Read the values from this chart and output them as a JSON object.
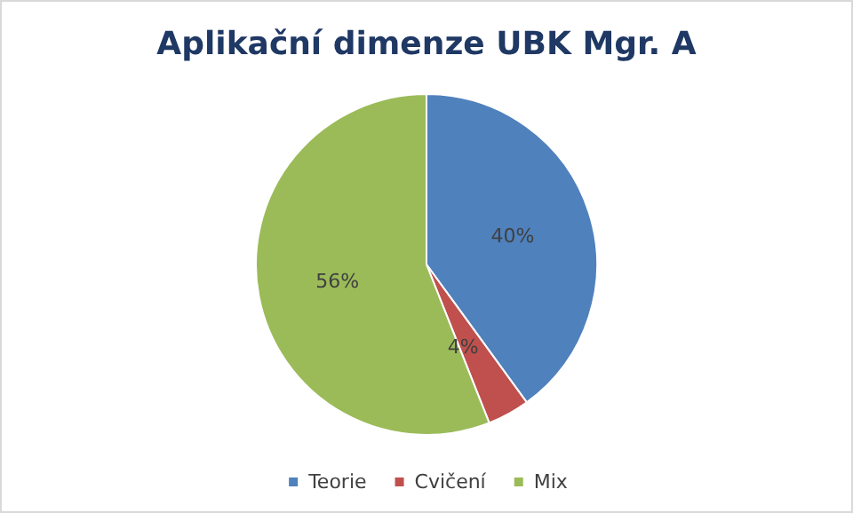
{
  "chart_data": {
    "type": "pie",
    "title": "Aplikační dimenze UBK Mgr. A",
    "categories": [
      "Teorie",
      "Cvičení",
      "Mix"
    ],
    "values": [
      40,
      4,
      56
    ],
    "colors": [
      "#4f81bd",
      "#c0504d",
      "#9bbb59"
    ],
    "value_labels": [
      "40%",
      "4%",
      "56%"
    ],
    "legend": "bottom"
  }
}
